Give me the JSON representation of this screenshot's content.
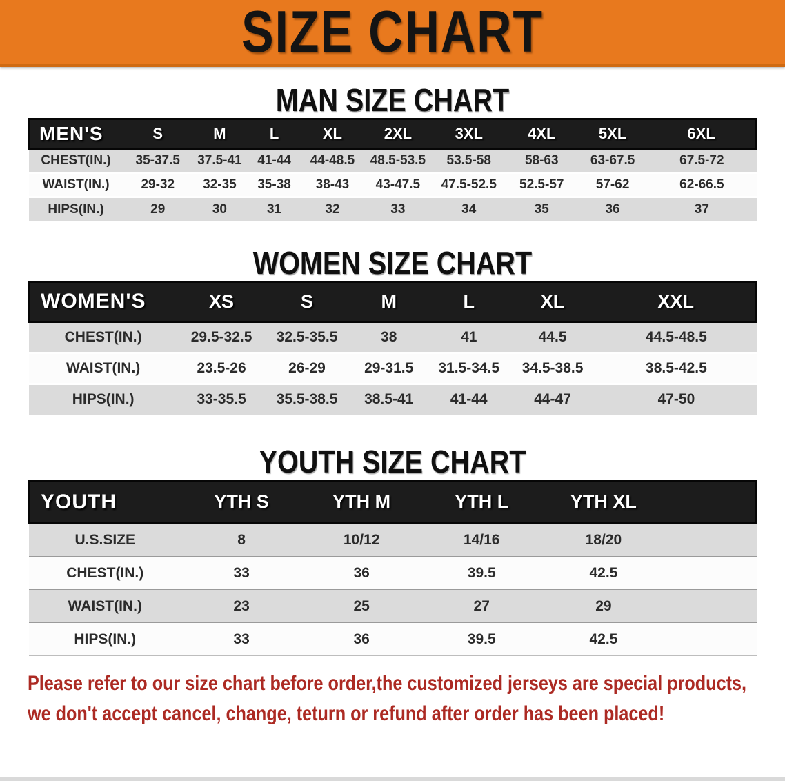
{
  "banner": {
    "title": "SIZE CHART"
  },
  "colors": {
    "banner_bg": "#E8791E",
    "header_bar_bg": "#1C1C1C",
    "row_gray": "#DBDBDB",
    "row_white": "#FCFCFC",
    "disclaimer_red": "#AC2A23"
  },
  "men": {
    "title": "MAN SIZE CHART",
    "header": [
      "MEN'S",
      "S",
      "M",
      "L",
      "XL",
      "2XL",
      "3XL",
      "4XL",
      "5XL",
      "6XL"
    ],
    "rows": [
      [
        "CHEST(IN.)",
        "35-37.5",
        "37.5-41",
        "41-44",
        "44-48.5",
        "48.5-53.5",
        "53.5-58",
        "58-63",
        "63-67.5",
        "67.5-72"
      ],
      [
        "WAIST(IN.)",
        "29-32",
        "32-35",
        "35-38",
        "38-43",
        "43-47.5",
        "47.5-52.5",
        "52.5-57",
        "57-62",
        "62-66.5"
      ],
      [
        "HIPS(IN.)",
        "29",
        "30",
        "31",
        "32",
        "33",
        "34",
        "35",
        "36",
        "37"
      ]
    ]
  },
  "women": {
    "title": "WOMEN SIZE CHART",
    "header": [
      "WOMEN'S",
      "XS",
      "S",
      "M",
      "L",
      "XL",
      "XXL"
    ],
    "rows": [
      [
        "CHEST(IN.)",
        "29.5-32.5",
        "32.5-35.5",
        "38",
        "41",
        "44.5",
        "44.5-48.5"
      ],
      [
        "WAIST(IN.)",
        "23.5-26",
        "26-29",
        "29-31.5",
        "31.5-34.5",
        "34.5-38.5",
        "38.5-42.5"
      ],
      [
        "HIPS(IN.)",
        "33-35.5",
        "35.5-38.5",
        "38.5-41",
        "41-44",
        "44-47",
        "47-50"
      ]
    ]
  },
  "youth": {
    "title": "YOUTH SIZE CHART",
    "header": [
      "YOUTH",
      "YTH S",
      "YTH M",
      "YTH L",
      "YTH XL",
      ""
    ],
    "rows": [
      [
        "U.S.SIZE",
        "8",
        "10/12",
        "14/16",
        "18/20",
        ""
      ],
      [
        "CHEST(IN.)",
        "33",
        "36",
        "39.5",
        "42.5",
        ""
      ],
      [
        "WAIST(IN.)",
        "23",
        "25",
        "27",
        "29",
        ""
      ],
      [
        "HIPS(IN.)",
        "33",
        "36",
        "39.5",
        "42.5",
        ""
      ]
    ]
  },
  "disclaimer": {
    "line1": "Please refer to our size chart before order,the customized jerseys are special products,",
    "line2": "we don't accept cancel, change, teturn or refund after order has been placed!"
  }
}
